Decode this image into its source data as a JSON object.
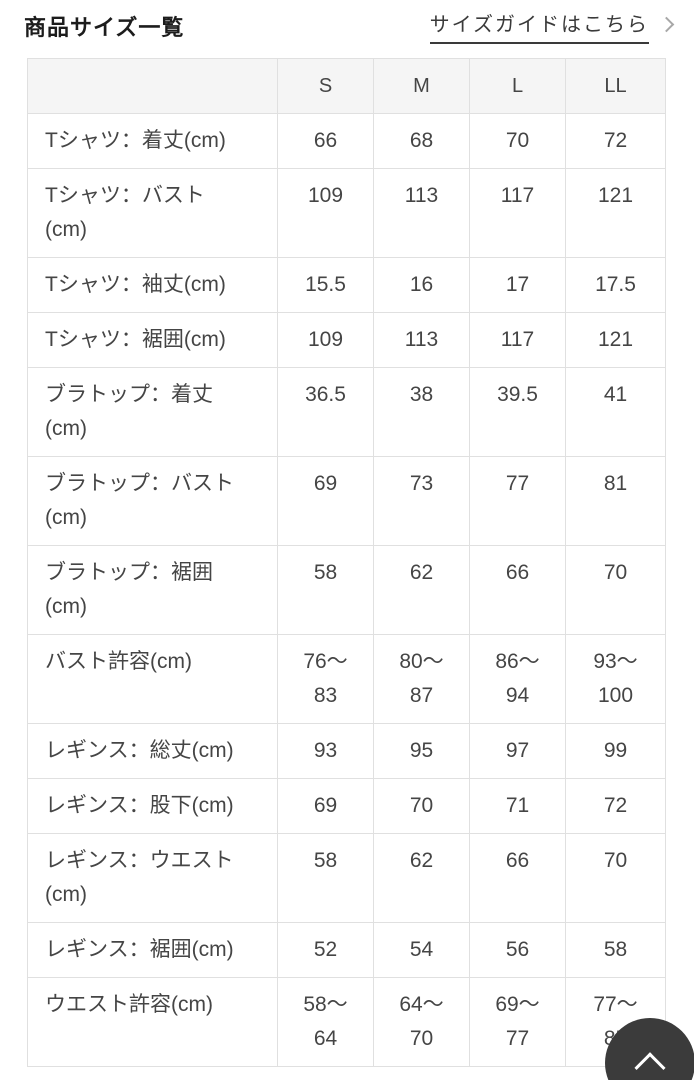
{
  "page_title": "商品サイズ一覧",
  "size_guide": {
    "label": "サイズガイドはこちら",
    "icon": "chevron-right"
  },
  "size_table": {
    "column_headers": [
      "S",
      "M",
      "L",
      "LL"
    ],
    "rows": [
      {
        "label": "Tシャツ：着丈(cm)",
        "values": [
          "66",
          "68",
          "70",
          "72"
        ]
      },
      {
        "label": "Tシャツ：バスト\n(cm)",
        "values": [
          "109",
          "113",
          "117",
          "121"
        ]
      },
      {
        "label": "Tシャツ：袖丈(cm)",
        "values": [
          "15.5",
          "16",
          "17",
          "17.5"
        ]
      },
      {
        "label": "Tシャツ：裾囲(cm)",
        "values": [
          "109",
          "113",
          "117",
          "121"
        ]
      },
      {
        "label": "ブラトップ：着丈\n(cm)",
        "values": [
          "36.5",
          "38",
          "39.5",
          "41"
        ]
      },
      {
        "label": "ブラトップ：バスト\n(cm)",
        "values": [
          "69",
          "73",
          "77",
          "81"
        ]
      },
      {
        "label": "ブラトップ：裾囲\n(cm)",
        "values": [
          "58",
          "62",
          "66",
          "70"
        ]
      },
      {
        "label": "バスト許容(cm)",
        "values": [
          "76〜\n83",
          "80〜\n87",
          "86〜\n94",
          "93〜\n100"
        ]
      },
      {
        "label": "レギンス：総丈(cm)",
        "values": [
          "93",
          "95",
          "97",
          "99"
        ]
      },
      {
        "label": "レギンス：股下(cm)",
        "values": [
          "69",
          "70",
          "71",
          "72"
        ]
      },
      {
        "label": "レギンス：ウエスト\n(cm)",
        "values": [
          "58",
          "62",
          "66",
          "70"
        ]
      },
      {
        "label": "レギンス：裾囲(cm)",
        "values": [
          "52",
          "54",
          "56",
          "58"
        ]
      },
      {
        "label": "ウエスト許容(cm)",
        "values": [
          "58〜\n64",
          "64〜\n70",
          "69〜\n77",
          "77〜\n85"
        ]
      }
    ]
  },
  "back_to_top": {
    "icon": "chevron-up"
  },
  "colors": {
    "title_text": "#1c1c1c",
    "link_text": "#3a3a3a",
    "link_chevron": "#a8a8a8",
    "table_border": "#e0e0e0",
    "header_row_bg": "#f5f5f5",
    "cell_text": "#454545",
    "back_to_top_bg": "#3b3b3b",
    "back_to_top_icon": "#ffffff"
  }
}
